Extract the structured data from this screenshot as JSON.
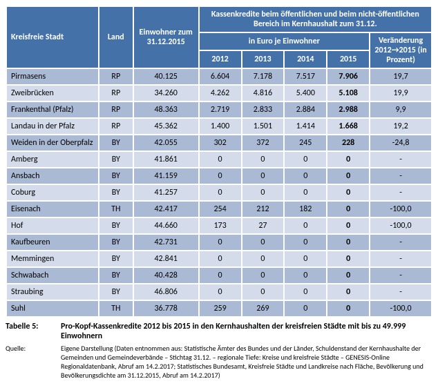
{
  "header": {
    "col_stadt": "Kreisfreie Stadt",
    "col_land": "Land",
    "col_einw": "Einwohner zum 31.12.2015",
    "col_kredit": "Kassenkredite beim öffentlichen und beim nicht-öffentlichen Bereich im Kernhaushalt zum 31.12.",
    "col_euro": "in Euro je Einwohner",
    "col_ver": "Veränderung 2012→2015 (in Prozent)",
    "y2012": "2012",
    "y2013": "2013",
    "y2014": "2014",
    "y2015": "2015"
  },
  "rows": [
    {
      "city": "Pirmasens",
      "land": "RP",
      "einw": "40.125",
      "y12": "6.604",
      "y13": "7.178",
      "y14": "7.517",
      "y15": "7.906",
      "ver": "19,7"
    },
    {
      "city": "Zweibrücken",
      "land": "RP",
      "einw": "34.260",
      "y12": "4.262",
      "y13": "4.816",
      "y14": "5.400",
      "y15": "5.108",
      "ver": "19,9"
    },
    {
      "city": "Frankenthal (Pfalz)",
      "land": "RP",
      "einw": "48.363",
      "y12": "2.719",
      "y13": "2.833",
      "y14": "2.884",
      "y15": "2.988",
      "ver": "9,9"
    },
    {
      "city": "Landau in der Pfalz",
      "land": "RP",
      "einw": "45.362",
      "y12": "1.400",
      "y13": "1.501",
      "y14": "1.414",
      "y15": "1.668",
      "ver": "19,2"
    },
    {
      "city": "Weiden in der Oberpfalz",
      "land": "BY",
      "einw": "42.055",
      "y12": "302",
      "y13": "372",
      "y14": "245",
      "y15": "228",
      "ver": "-24,8"
    },
    {
      "city": "Amberg",
      "land": "BY",
      "einw": "41.861",
      "y12": "0",
      "y13": "0",
      "y14": "0",
      "y15": "0",
      "ver": "-"
    },
    {
      "city": "Ansbach",
      "land": "BY",
      "einw": "41.159",
      "y12": "0",
      "y13": "0",
      "y14": "0",
      "y15": "0",
      "ver": "-"
    },
    {
      "city": "Coburg",
      "land": "BY",
      "einw": "41.257",
      "y12": "0",
      "y13": "0",
      "y14": "0",
      "y15": "0",
      "ver": "-"
    },
    {
      "city": "Eisenach",
      "land": "TH",
      "einw": "42.417",
      "y12": "254",
      "y13": "212",
      "y14": "182",
      "y15": "0",
      "ver": "-100,0"
    },
    {
      "city": "Hof",
      "land": "BY",
      "einw": "44.660",
      "y12": "173",
      "y13": "27",
      "y14": "0",
      "y15": "0",
      "ver": "-100,0"
    },
    {
      "city": "Kaufbeuren",
      "land": "BY",
      "einw": "42.731",
      "y12": "0",
      "y13": "0",
      "y14": "0",
      "y15": "0",
      "ver": "-"
    },
    {
      "city": "Memmingen",
      "land": "BY",
      "einw": "42.841",
      "y12": "0",
      "y13": "0",
      "y14": "0",
      "y15": "0",
      "ver": "-"
    },
    {
      "city": "Schwabach",
      "land": "BY",
      "einw": "40.428",
      "y12": "0",
      "y13": "0",
      "y14": "0",
      "y15": "0",
      "ver": "-"
    },
    {
      "city": "Straubing",
      "land": "BY",
      "einw": "46.806",
      "y12": "0",
      "y13": "0",
      "y14": "0",
      "y15": "0",
      "ver": "-"
    },
    {
      "city": "Suhl",
      "land": "TH",
      "einw": "36.778",
      "y12": "259",
      "y13": "269",
      "y14": "0",
      "y15": "0",
      "ver": "-100,0"
    }
  ],
  "footer": {
    "table_label": "Tabelle 5:",
    "table_title": "Pro-Kopf-Kassenkredite 2012 bis 2015 in den Kernhaushalten der kreisfreien Städte mit bis zu 49.999 Einwohnern",
    "source_label": "Quelle:",
    "source_text": "Eigene Darstellung (Daten entnommen aus: Statistische Ämter des Bundes und der Länder, Schuldenstand der Kernhaushalte der Gemeinden und Gemeindeverbände – Stichtag 31.12. – regionale Tiefe: Kreise und kreisfreie Städte – GENESIS-Online Regionaldatenbank, Abruf am 14.2.2017; Statistisches Bundesamt, Kreisfreie Städte und Landkreise nach Fläche, Bevölkerung und Bevölkerungsdichte am 31.12.2015, Abruf am 14.2.2017)"
  },
  "colors": {
    "header_bg": "#4472a8",
    "row_odd": "#aab9d4",
    "row_even": "#d4dbea",
    "border": "#ffffff",
    "text_header": "#ffffff",
    "text_body": "#000000"
  }
}
